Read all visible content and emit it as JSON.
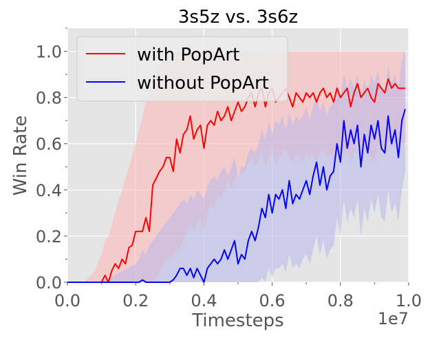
{
  "chart_data": {
    "type": "line",
    "title": "3s5z vs. 3s6z",
    "xlabel": "Timesteps",
    "ylabel": "Win Rate",
    "x_offset_label": "1e7",
    "xlim": [
      0.0,
      1.0
    ],
    "ylim": [
      0.0,
      1.1
    ],
    "xticks": [
      "0.0",
      "0.2",
      "0.4",
      "0.6",
      "0.8",
      "1.0"
    ],
    "yticks": [
      "0.0",
      "0.2",
      "0.4",
      "0.6",
      "0.8",
      "1.0"
    ],
    "grid": true,
    "legend_position": "top-left",
    "background": "#e5e5e5",
    "series": [
      {
        "name": "with PopArt",
        "color": "#ff0000",
        "band_color": "#ffb6b6",
        "x": [
          0.0,
          0.05,
          0.08,
          0.1,
          0.11,
          0.12,
          0.13,
          0.14,
          0.15,
          0.16,
          0.17,
          0.18,
          0.19,
          0.2,
          0.21,
          0.22,
          0.23,
          0.24,
          0.25,
          0.26,
          0.27,
          0.28,
          0.29,
          0.3,
          0.31,
          0.32,
          0.33,
          0.34,
          0.35,
          0.36,
          0.37,
          0.38,
          0.39,
          0.4,
          0.41,
          0.42,
          0.43,
          0.44,
          0.45,
          0.46,
          0.47,
          0.48,
          0.49,
          0.5,
          0.51,
          0.52,
          0.53,
          0.54,
          0.55,
          0.56,
          0.57,
          0.58,
          0.59,
          0.6,
          0.61,
          0.62,
          0.63,
          0.64,
          0.65,
          0.66,
          0.67,
          0.68,
          0.69,
          0.7,
          0.71,
          0.72,
          0.73,
          0.74,
          0.75,
          0.76,
          0.77,
          0.78,
          0.79,
          0.8,
          0.81,
          0.82,
          0.83,
          0.84,
          0.85,
          0.86,
          0.87,
          0.88,
          0.89,
          0.9,
          0.91,
          0.92,
          0.93,
          0.94,
          0.95,
          0.96,
          0.97,
          0.98,
          0.99
        ],
        "values": [
          0.0,
          0.0,
          0.0,
          0.0,
          0.03,
          0.0,
          0.05,
          0.08,
          0.06,
          0.1,
          0.08,
          0.15,
          0.16,
          0.22,
          0.22,
          0.22,
          0.28,
          0.22,
          0.42,
          0.45,
          0.48,
          0.5,
          0.54,
          0.54,
          0.48,
          0.62,
          0.56,
          0.64,
          0.66,
          0.72,
          0.62,
          0.66,
          0.68,
          0.58,
          0.68,
          0.7,
          0.68,
          0.74,
          0.7,
          0.72,
          0.76,
          0.7,
          0.74,
          0.78,
          0.74,
          0.76,
          0.8,
          0.82,
          0.76,
          0.82,
          0.84,
          0.76,
          0.82,
          0.84,
          0.78,
          0.8,
          0.82,
          0.84,
          0.8,
          0.76,
          0.82,
          0.8,
          0.78,
          0.82,
          0.8,
          0.82,
          0.78,
          0.82,
          0.84,
          0.8,
          0.82,
          0.78,
          0.84,
          0.8,
          0.82,
          0.84,
          0.76,
          0.82,
          0.86,
          0.8,
          0.82,
          0.84,
          0.8,
          0.78,
          0.86,
          0.84,
          0.82,
          0.88,
          0.84,
          0.86,
          0.84,
          0.84,
          0.84
        ],
        "upper": [
          0.0,
          0.0,
          0.05,
          0.12,
          0.18,
          0.2,
          0.25,
          0.3,
          0.35,
          0.4,
          0.45,
          0.5,
          0.55,
          0.6,
          0.66,
          0.72,
          0.78,
          0.82,
          0.86,
          0.9,
          0.93,
          0.95,
          0.97,
          0.98,
          0.99,
          1.0,
          1.0,
          1.0,
          1.0,
          1.0,
          1.0,
          1.0,
          1.0,
          1.0,
          1.0,
          1.0,
          1.0,
          1.0,
          1.0,
          1.0,
          1.0,
          1.0,
          1.0,
          1.0,
          1.0,
          1.0,
          1.0,
          1.0,
          1.0,
          1.0,
          1.0,
          1.0,
          1.0,
          1.0,
          1.0,
          1.0,
          1.0,
          1.0,
          1.0,
          1.0,
          1.0,
          1.0,
          1.0,
          1.0,
          1.0,
          1.0,
          1.0,
          1.0,
          1.0,
          1.0,
          1.0,
          1.0,
          1.0,
          1.0,
          1.0,
          1.0,
          1.0,
          1.0,
          1.0,
          1.0,
          1.0,
          1.0,
          1.0,
          1.0,
          1.0,
          1.0,
          1.0,
          1.0,
          1.0,
          1.0,
          1.0,
          1.0,
          1.0
        ],
        "lower": [
          0.0,
          0.0,
          0.0,
          0.0,
          0.0,
          0.0,
          0.0,
          0.0,
          0.0,
          0.0,
          0.0,
          0.0,
          0.0,
          0.0,
          0.0,
          0.0,
          0.0,
          0.0,
          0.0,
          0.02,
          0.05,
          0.08,
          0.1,
          0.12,
          0.1,
          0.16,
          0.14,
          0.18,
          0.22,
          0.26,
          0.22,
          0.26,
          0.28,
          0.22,
          0.3,
          0.34,
          0.32,
          0.38,
          0.36,
          0.4,
          0.44,
          0.4,
          0.44,
          0.48,
          0.46,
          0.48,
          0.52,
          0.54,
          0.5,
          0.54,
          0.56,
          0.5,
          0.54,
          0.58,
          0.52,
          0.54,
          0.56,
          0.58,
          0.54,
          0.52,
          0.56,
          0.54,
          0.52,
          0.56,
          0.54,
          0.56,
          0.52,
          0.56,
          0.58,
          0.54,
          0.56,
          0.52,
          0.58,
          0.54,
          0.56,
          0.58,
          0.52,
          0.56,
          0.6,
          0.54,
          0.56,
          0.58,
          0.54,
          0.52,
          0.6,
          0.58,
          0.56,
          0.62,
          0.58,
          0.6,
          0.58,
          0.6,
          0.6
        ]
      },
      {
        "name": "without PopArt",
        "color": "#0000ff",
        "band_color": "#b8b8ec",
        "x": [
          0.0,
          0.1,
          0.2,
          0.21,
          0.22,
          0.23,
          0.24,
          0.25,
          0.26,
          0.27,
          0.28,
          0.29,
          0.3,
          0.31,
          0.32,
          0.33,
          0.34,
          0.35,
          0.36,
          0.37,
          0.38,
          0.39,
          0.4,
          0.41,
          0.42,
          0.43,
          0.44,
          0.45,
          0.46,
          0.47,
          0.48,
          0.49,
          0.5,
          0.51,
          0.52,
          0.53,
          0.54,
          0.55,
          0.56,
          0.57,
          0.58,
          0.59,
          0.6,
          0.61,
          0.62,
          0.63,
          0.64,
          0.65,
          0.66,
          0.67,
          0.68,
          0.69,
          0.7,
          0.71,
          0.72,
          0.73,
          0.74,
          0.75,
          0.76,
          0.77,
          0.78,
          0.79,
          0.8,
          0.81,
          0.82,
          0.83,
          0.84,
          0.85,
          0.86,
          0.87,
          0.88,
          0.89,
          0.9,
          0.91,
          0.92,
          0.93,
          0.94,
          0.95,
          0.96,
          0.97,
          0.98,
          0.99
        ],
        "values": [
          0.0,
          0.0,
          0.0,
          0.0,
          0.01,
          0.0,
          0.0,
          0.0,
          0.0,
          0.0,
          0.0,
          0.0,
          0.0,
          0.01,
          0.03,
          0.06,
          0.06,
          0.03,
          0.06,
          0.02,
          0.06,
          0.03,
          0.0,
          0.06,
          0.08,
          0.1,
          0.08,
          0.1,
          0.14,
          0.1,
          0.14,
          0.18,
          0.08,
          0.12,
          0.1,
          0.18,
          0.22,
          0.18,
          0.24,
          0.32,
          0.28,
          0.38,
          0.3,
          0.38,
          0.36,
          0.4,
          0.32,
          0.44,
          0.34,
          0.38,
          0.36,
          0.4,
          0.44,
          0.38,
          0.46,
          0.52,
          0.42,
          0.5,
          0.4,
          0.46,
          0.48,
          0.6,
          0.52,
          0.7,
          0.58,
          0.66,
          0.6,
          0.68,
          0.5,
          0.64,
          0.56,
          0.68,
          0.62,
          0.7,
          0.58,
          0.56,
          0.72,
          0.6,
          0.66,
          0.54,
          0.7,
          0.75
        ],
        "upper": [
          0.0,
          0.0,
          0.08,
          0.1,
          0.14,
          0.12,
          0.16,
          0.18,
          0.2,
          0.22,
          0.24,
          0.26,
          0.28,
          0.3,
          0.32,
          0.34,
          0.36,
          0.34,
          0.38,
          0.36,
          0.4,
          0.38,
          0.36,
          0.42,
          0.44,
          0.46,
          0.44,
          0.48,
          0.5,
          0.46,
          0.5,
          0.54,
          0.46,
          0.5,
          0.5,
          0.56,
          0.58,
          0.56,
          0.6,
          0.66,
          0.62,
          0.7,
          0.64,
          0.7,
          0.68,
          0.72,
          0.66,
          0.74,
          0.68,
          0.72,
          0.7,
          0.72,
          0.76,
          0.7,
          0.76,
          0.8,
          0.74,
          0.78,
          0.72,
          0.76,
          0.78,
          0.86,
          0.8,
          0.9,
          0.84,
          0.88,
          0.84,
          0.9,
          0.78,
          0.88,
          0.82,
          0.9,
          0.86,
          0.92,
          0.84,
          0.82,
          0.94,
          0.86,
          0.9,
          0.84,
          0.96,
          1.0
        ],
        "lower": [
          0.0,
          0.0,
          0.0,
          0.0,
          0.0,
          0.0,
          0.0,
          0.0,
          0.0,
          0.0,
          0.0,
          0.0,
          0.0,
          0.0,
          0.0,
          0.0,
          0.0,
          0.0,
          0.0,
          0.0,
          0.0,
          0.0,
          0.0,
          0.0,
          0.0,
          0.0,
          0.0,
          0.0,
          0.0,
          0.0,
          0.0,
          0.0,
          0.0,
          0.0,
          0.0,
          0.0,
          0.0,
          0.0,
          0.0,
          0.02,
          0.0,
          0.06,
          0.02,
          0.06,
          0.06,
          0.08,
          0.04,
          0.12,
          0.06,
          0.08,
          0.06,
          0.1,
          0.12,
          0.08,
          0.14,
          0.2,
          0.12,
          0.18,
          0.1,
          0.14,
          0.16,
          0.28,
          0.2,
          0.36,
          0.26,
          0.32,
          0.28,
          0.36,
          0.2,
          0.32,
          0.26,
          0.36,
          0.3,
          0.38,
          0.28,
          0.26,
          0.4,
          0.3,
          0.34,
          0.26,
          0.4,
          0.48
        ]
      }
    ]
  }
}
